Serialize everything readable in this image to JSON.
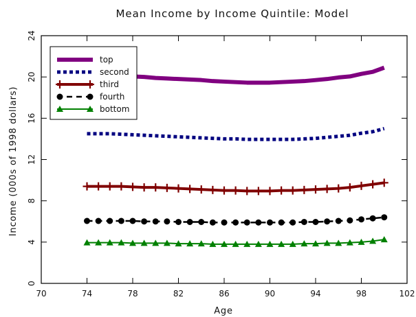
{
  "chart_data": {
    "type": "line",
    "title": "Mean Income by Income Quintile:  Model",
    "xlabel": "Age",
    "ylabel": "Income (000s of 1998 dollars)",
    "xlim": [
      70,
      102
    ],
    "ylim": [
      0,
      24
    ],
    "xticks": [
      70,
      74,
      78,
      82,
      86,
      90,
      94,
      98,
      102
    ],
    "yticks": [
      0,
      4,
      8,
      12,
      16,
      20,
      24
    ],
    "grid": false,
    "legend_position": "top-left",
    "x": [
      74,
      75,
      76,
      77,
      78,
      79,
      80,
      81,
      82,
      83,
      84,
      85,
      86,
      87,
      88,
      89,
      90,
      91,
      92,
      93,
      94,
      95,
      96,
      97,
      98,
      99,
      100
    ],
    "series": [
      {
        "name": "top",
        "style": "thick-solid",
        "color": "#800080",
        "values": [
          20.2,
          20.2,
          20.15,
          20.1,
          20.05,
          20.0,
          19.9,
          19.85,
          19.8,
          19.75,
          19.7,
          19.6,
          19.55,
          19.5,
          19.45,
          19.45,
          19.45,
          19.5,
          19.55,
          19.6,
          19.7,
          19.8,
          19.95,
          20.05,
          20.3,
          20.5,
          20.9
        ]
      },
      {
        "name": "second",
        "style": "dotted",
        "color": "#000080",
        "values": [
          14.5,
          14.5,
          14.5,
          14.45,
          14.4,
          14.35,
          14.3,
          14.25,
          14.2,
          14.15,
          14.1,
          14.05,
          14.0,
          14.0,
          13.95,
          13.95,
          13.95,
          13.95,
          13.95,
          14.0,
          14.05,
          14.15,
          14.25,
          14.35,
          14.55,
          14.7,
          15.0
        ]
      },
      {
        "name": "third",
        "style": "line-plus",
        "color": "#800000",
        "values": [
          9.4,
          9.4,
          9.4,
          9.4,
          9.35,
          9.3,
          9.3,
          9.25,
          9.2,
          9.15,
          9.1,
          9.05,
          9.0,
          9.0,
          8.95,
          8.95,
          8.95,
          9.0,
          9.0,
          9.05,
          9.1,
          9.15,
          9.2,
          9.3,
          9.45,
          9.6,
          9.75
        ]
      },
      {
        "name": "fourth",
        "style": "dashed-circle",
        "color": "#000000",
        "values": [
          6.05,
          6.05,
          6.05,
          6.05,
          6.05,
          6.0,
          6.0,
          6.0,
          5.95,
          5.95,
          5.95,
          5.9,
          5.9,
          5.9,
          5.9,
          5.9,
          5.9,
          5.9,
          5.9,
          5.95,
          5.95,
          6.0,
          6.05,
          6.1,
          6.2,
          6.3,
          6.4
        ]
      },
      {
        "name": "bottom",
        "style": "line-triangle",
        "color": "#008000",
        "values": [
          3.95,
          3.95,
          3.95,
          3.95,
          3.9,
          3.9,
          3.9,
          3.9,
          3.85,
          3.85,
          3.85,
          3.8,
          3.8,
          3.8,
          3.8,
          3.8,
          3.8,
          3.8,
          3.8,
          3.85,
          3.85,
          3.9,
          3.9,
          3.95,
          4.0,
          4.1,
          4.25
        ]
      }
    ]
  }
}
